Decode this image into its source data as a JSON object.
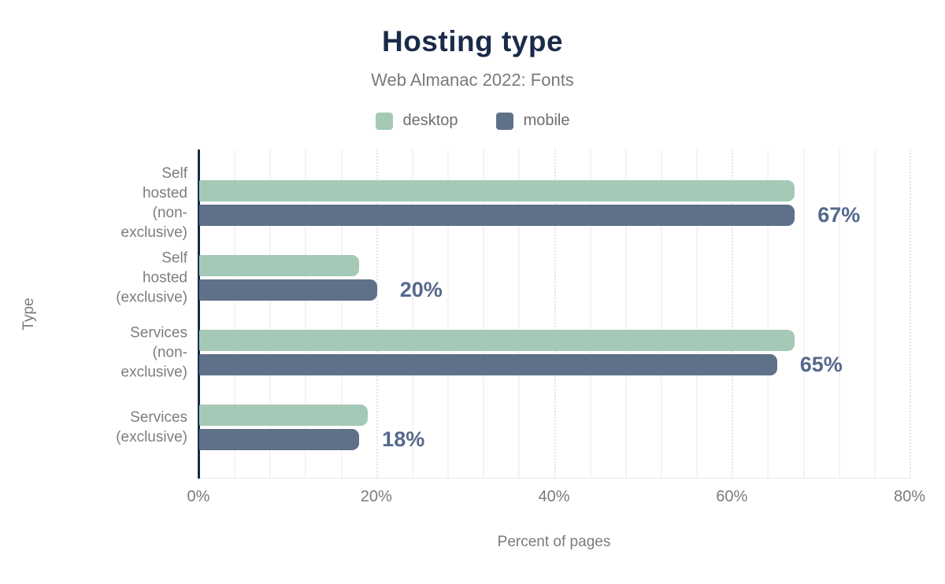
{
  "title": "Hosting type",
  "subtitle": "Web Almanac 2022: Fonts",
  "legend": [
    {
      "label": "desktop",
      "color": "#a4c9b6"
    },
    {
      "label": "mobile",
      "color": "#5f7189"
    }
  ],
  "chart_data": {
    "type": "bar",
    "orientation": "horizontal",
    "title": "Hosting type",
    "subtitle": "Web Almanac 2022: Fonts",
    "xlabel": "Percent of pages",
    "ylabel": "Type",
    "xlim": [
      0,
      80
    ],
    "xtick_values": [
      0,
      20,
      40,
      60,
      80
    ],
    "xtick_labels": [
      "0%",
      "20%",
      "40%",
      "60%",
      "80%"
    ],
    "grid": "vertical, minor solid every 4%, major dotted every 20%",
    "grid_minor_step": 4,
    "grid_major_step": 20,
    "legend_position": "top center",
    "categories": [
      "Self hosted\n(non-exclusive)",
      "Self hosted\n(exclusive)",
      "Services\n(non-exclusive)",
      "Services\n(exclusive)"
    ],
    "series": [
      {
        "name": "desktop",
        "color": "#a4c9b6",
        "values": [
          67,
          18,
          67,
          19
        ]
      },
      {
        "name": "mobile",
        "color": "#5f7189",
        "values": [
          67,
          20,
          65,
          18
        ]
      }
    ],
    "value_labels": [
      "67%",
      "20%",
      "65%",
      "18%"
    ],
    "value_label_series": "mobile"
  },
  "colors": {
    "title": "#1a2b49",
    "subtitle": "#7a7a7a",
    "axis_text": "#7b7b7b",
    "category_text": "#7d7d7d",
    "legend_text": "#6f6f6f",
    "value_label": "#55698c",
    "axis_line": "#1b2a4a",
    "background": "#ffffff"
  }
}
